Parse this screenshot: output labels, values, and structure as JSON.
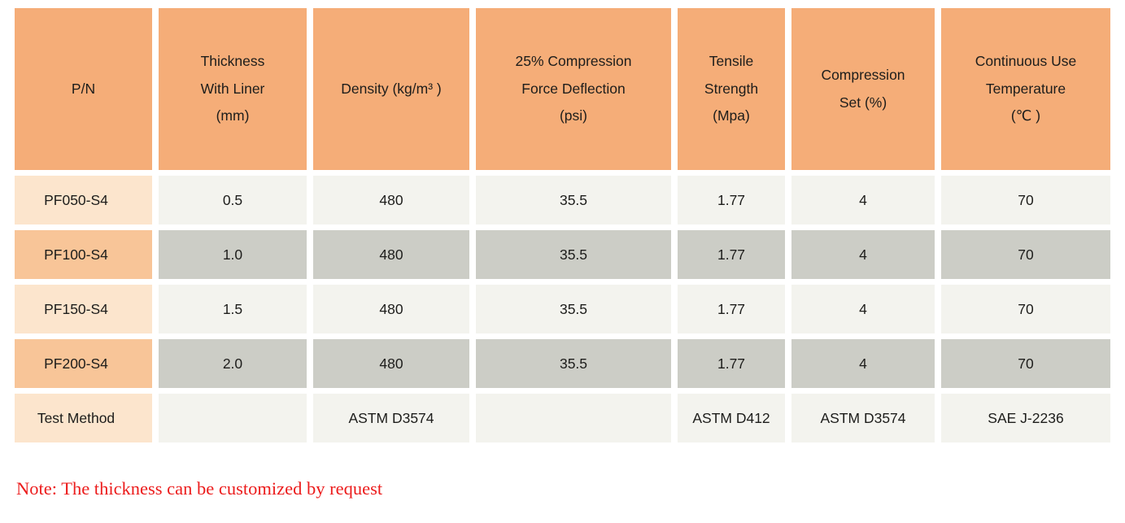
{
  "colors": {
    "header_bg": "#f5ad78",
    "row_label_light": "#fce5cd",
    "row_label_medium": "#f8c598",
    "cell_light": "#f3f3ee",
    "cell_dark": "#cccdc6",
    "note_color": "#ec1c1c"
  },
  "table": {
    "columns": [
      {
        "id": "pn",
        "label": "P/N"
      },
      {
        "id": "thickness-with-liner",
        "label": "Thickness\nWith Liner\n(mm)"
      },
      {
        "id": "density",
        "label": "Density (kg/m³ )"
      },
      {
        "id": "compression-force-deflection",
        "label": "25% Compression\nForce Deflection\n(psi)"
      },
      {
        "id": "tensile-strength",
        "label": "Tensile\nStrength\n(Mpa)"
      },
      {
        "id": "compression-set",
        "label": "Compression\nSet (%)"
      },
      {
        "id": "continuous-use-temperature",
        "label": "Continuous Use\nTemperature\n(℃ )"
      }
    ],
    "rows": [
      {
        "pn": "PF050-S4",
        "shade": "light",
        "values": [
          "0.5",
          "480",
          "35.5",
          "1.77",
          "4",
          "70"
        ]
      },
      {
        "pn": "PF100-S4",
        "shade": "dark",
        "values": [
          "1.0",
          "480",
          "35.5",
          "1.77",
          "4",
          "70"
        ]
      },
      {
        "pn": "PF150-S4",
        "shade": "light",
        "values": [
          "1.5",
          "480",
          "35.5",
          "1.77",
          "4",
          "70"
        ]
      },
      {
        "pn": "PF200-S4",
        "shade": "dark",
        "values": [
          "2.0",
          "480",
          "35.5",
          "1.77",
          "4",
          "70"
        ]
      },
      {
        "pn": "Test Method",
        "shade": "light",
        "values": [
          "",
          "ASTM D3574",
          "",
          "ASTM D412",
          "ASTM D3574",
          "SAE J-2236"
        ]
      }
    ]
  },
  "note": "Note: The thickness can be customized by request"
}
